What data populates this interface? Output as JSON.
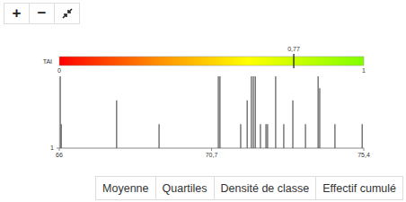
{
  "chart_data": {
    "type": "strip",
    "x": [
      66.03,
      66.06,
      67.77,
      69.08,
      70.91,
      70.96,
      71.6,
      71.8,
      71.93,
      71.99,
      72.05,
      72.21,
      72.38,
      72.43,
      72.68,
      72.93,
      73.21,
      73.6,
      73.99,
      74.04,
      74.51,
      75.35
    ],
    "values": [
      4,
      2,
      3,
      2,
      4,
      4,
      2,
      3,
      4,
      4,
      4,
      2,
      2,
      2,
      4,
      2,
      3,
      2,
      4,
      3.5,
      2,
      2
    ],
    "xlim": [
      66,
      75.4
    ],
    "xticks": [
      66,
      {
        "value": 70.7,
        "label": "70,7"
      },
      {
        "value": 75.4,
        "label": "75,4"
      }
    ],
    "ylim": [
      1,
      4
    ],
    "yticks": [
      1
    ],
    "color": "#555",
    "colorbar": {
      "label": "TAI",
      "range": [
        0,
        1
      ],
      "ticks": [
        0,
        1
      ],
      "indicator": {
        "value": 0.77,
        "label": "0,77"
      }
    }
  },
  "controls": {
    "zoom": [
      "+",
      "−"
    ],
    "buttons": [
      "Moyenne",
      "Quartiles",
      "Densité de classe",
      "Effectif cumulé"
    ]
  }
}
